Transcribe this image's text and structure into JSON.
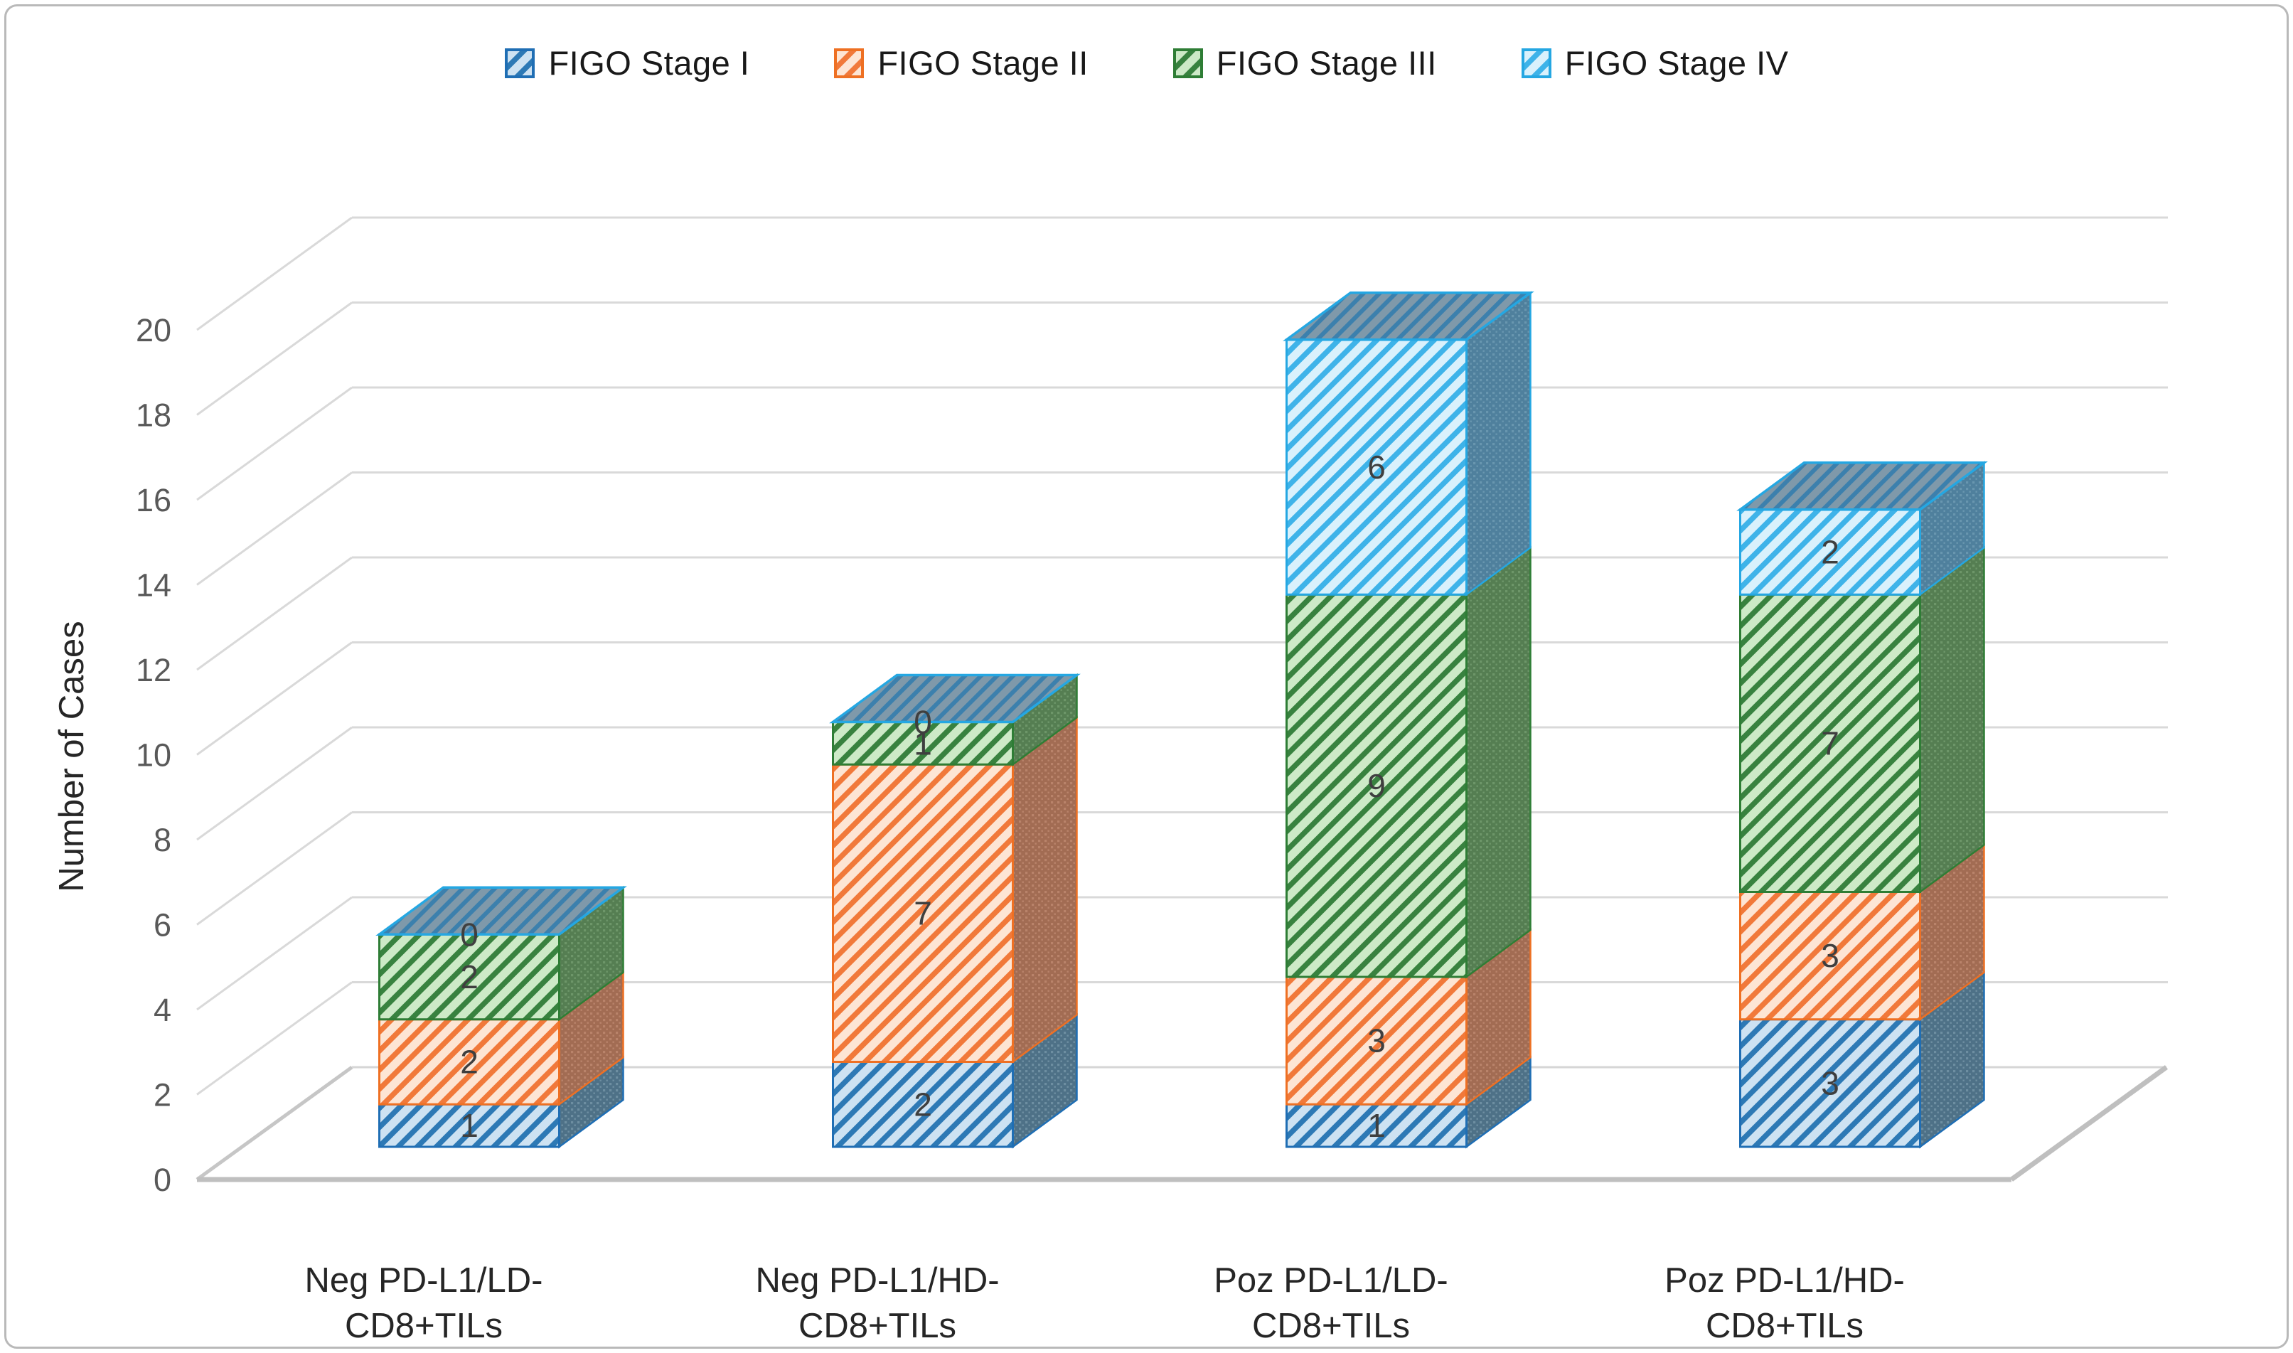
{
  "chart_data": {
    "type": "bar",
    "subtype": "3d-stacked-column",
    "title": "",
    "ylabel": "Number of Cases",
    "ylim": [
      0,
      20
    ],
    "ytick_step": 2,
    "grid": true,
    "legend_position": "top",
    "categories": [
      "Neg PD-L1/LD-CD8+TILs",
      "Neg PD-L1/HD-CD8+TILs",
      "Poz PD-L1/LD-CD8+TILs",
      "Poz PD-L1/HD-CD8+TILs"
    ],
    "category_label_lines": [
      [
        "Neg PD-L1/LD-",
        "CD8+TILs"
      ],
      [
        "Neg PD-L1/HD-",
        "CD8+TILs"
      ],
      [
        "Poz PD-L1/LD-",
        "CD8+TILs"
      ],
      [
        "Poz PD-L1/HD-",
        "CD8+TILs"
      ]
    ],
    "series": [
      {
        "name": "FIGO Stage I",
        "values": [
          1,
          2,
          1,
          3
        ]
      },
      {
        "name": "FIGO Stage II",
        "values": [
          2,
          7,
          3,
          3
        ]
      },
      {
        "name": "FIGO Stage III",
        "values": [
          2,
          1,
          9,
          7
        ]
      },
      {
        "name": "FIGO Stage IV",
        "values": [
          0,
          0,
          6,
          2
        ]
      }
    ],
    "totals": [
      5,
      10,
      19,
      15
    ]
  },
  "styles": {
    "series": [
      {
        "fill": "#cde2f2",
        "stripe": "#2d79b5",
        "border": "#1f6eb4",
        "side": "#4e7187",
        "side_dot": "#6d8ea1"
      },
      {
        "fill": "#fde5d4",
        "stripe": "#f1793a",
        "border": "#ee7023",
        "side": "#a26c53",
        "side_dot": "#b9836a"
      },
      {
        "fill": "#cdeac7",
        "stripe": "#38823f",
        "border": "#2e7d35",
        "side": "#557e52",
        "side_dot": "#6d9669"
      },
      {
        "fill": "#d9f1fc",
        "stripe": "#3eb3e9",
        "border": "#25a7e2",
        "side": "#4f809d",
        "side_dot": "#6896af"
      }
    ],
    "top_face": {
      "fill": "#7f99aa",
      "stripe": "#3c80ad",
      "border": "#25a7e2"
    },
    "gridline": "#d9d9d9",
    "floor": "#bfbfbf",
    "floor_back": "#d6d6d6",
    "tick_color": "#595959",
    "label_color": "#3f3f3f",
    "category_color": "#262626",
    "axis_title_color": "#262626",
    "legend_text_color": "#191919",
    "background": "#ffffff",
    "frame_border": "#b9b9b9"
  }
}
